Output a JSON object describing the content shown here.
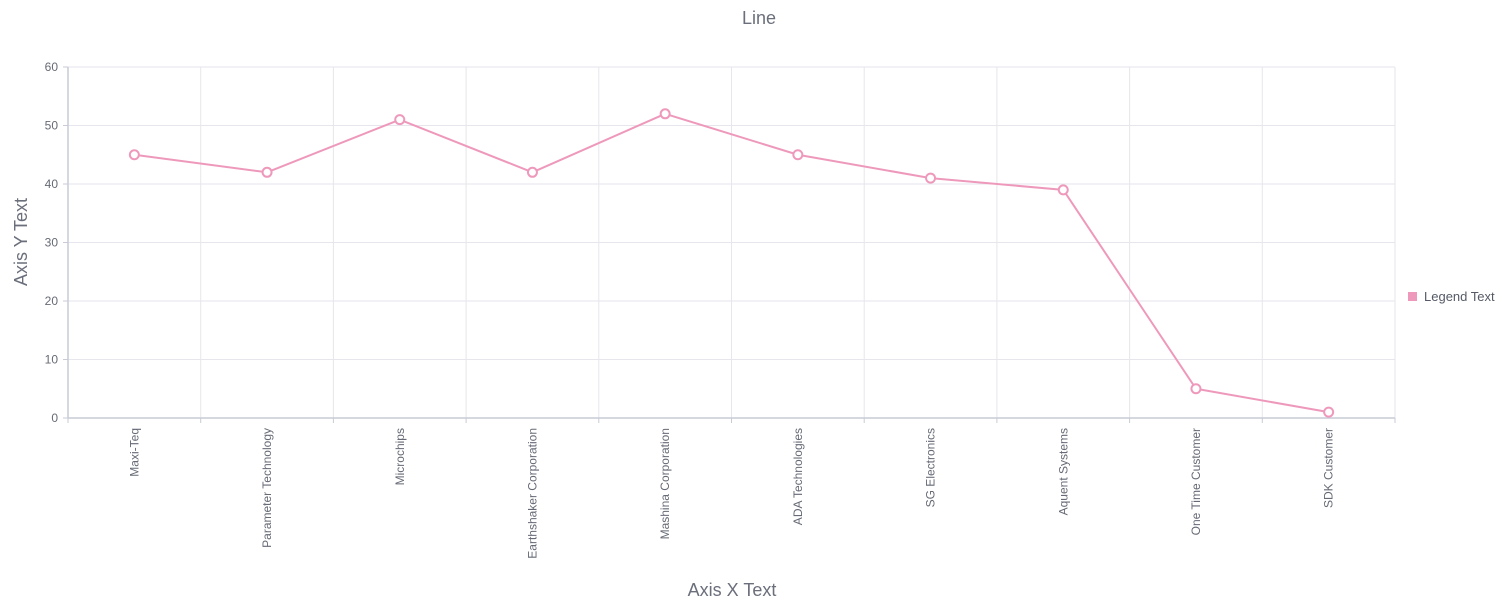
{
  "chart_data": {
    "type": "line",
    "title": "Line",
    "xlabel": "Axis X Text",
    "ylabel": "Axis Y Text",
    "categories": [
      "Maxi-Teq",
      "Parameter Technology",
      "Microchips",
      "Earthshaker Corporation",
      "Mashina Corporation",
      "ADA Technologies",
      "SG Electronics",
      "Aquent Systems",
      "One Time Customer",
      "SDK Customer"
    ],
    "series": [
      {
        "name": "Legend Text",
        "color": "#ee99bb",
        "values": [
          45,
          42,
          51,
          42,
          52,
          45,
          41,
          39,
          5,
          1
        ]
      }
    ],
    "ylim": [
      0,
      60
    ],
    "yticks": [
      0,
      10,
      20,
      30,
      40,
      50,
      60
    ],
    "grid": true,
    "legend_position": "right"
  }
}
